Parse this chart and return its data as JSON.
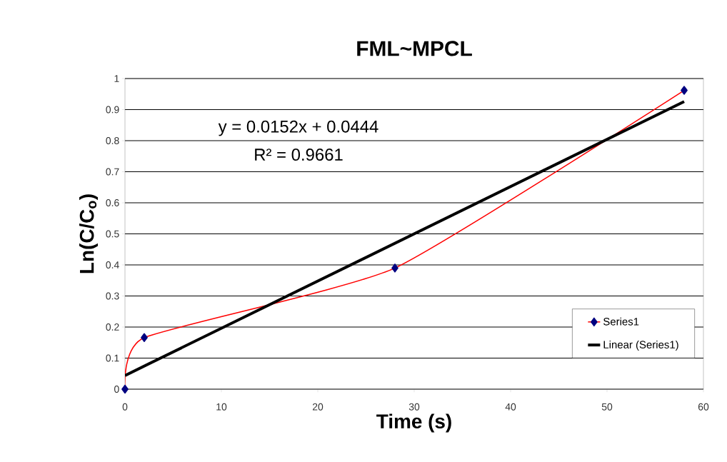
{
  "chart_data": {
    "type": "line",
    "title": "FML~MPCL",
    "xlabel": "Time (s)",
    "ylabel": "Ln(C/C$_{o}$)",
    "annotations": [
      "y = 0.0152x + 0.0444",
      "R² = 0.9661"
    ],
    "series": [
      {
        "name": "Series1",
        "color": "#ff0000",
        "marker": "diamond",
        "x": [
          0,
          2,
          28,
          58
        ],
        "values": [
          0,
          0.166,
          0.39,
          0.962
        ]
      },
      {
        "name": "Linear (Series1)",
        "color": "#000000",
        "marker": "none",
        "x": [
          0,
          58
        ],
        "values": [
          0.044,
          0.926
        ]
      }
    ],
    "xlim": [
      0,
      60
    ],
    "xticks": [
      0,
      10,
      20,
      30,
      40,
      50,
      60
    ],
    "ylim": [
      0,
      1
    ],
    "yticks": [
      0,
      0.1,
      0.2,
      0.3,
      0.4,
      0.5,
      0.6,
      0.7,
      0.8,
      0.9,
      1
    ],
    "grid": "y",
    "legend": "bottom right"
  }
}
